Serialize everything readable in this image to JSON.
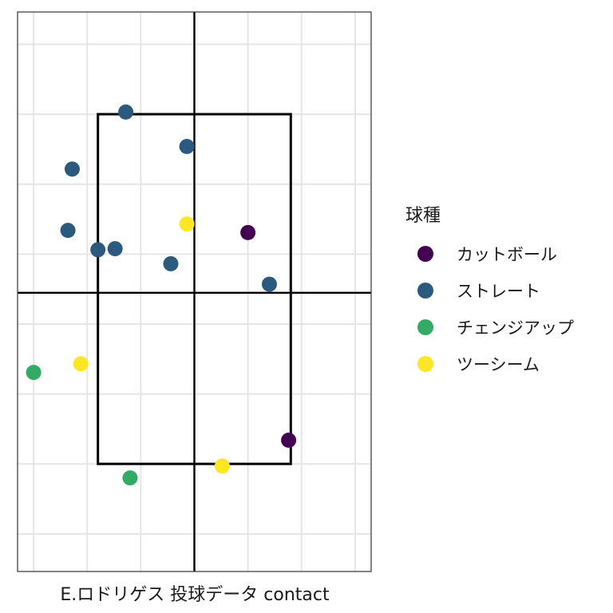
{
  "chart_data": {
    "type": "scatter",
    "title": "",
    "xlabel": "E.ロドリゲス 投球データ contact",
    "ylabel": "",
    "xlim": [
      -1.65,
      1.65
    ],
    "ylim": [
      0.0,
      5.2
    ],
    "x_gridlines": [
      -1.5,
      -1.0,
      -0.5,
      0.0,
      0.5,
      1.0,
      1.5
    ],
    "y_gridlines": [
      0.35,
      1.0,
      1.65,
      2.3,
      2.95,
      3.6,
      4.25,
      4.9
    ],
    "grid": true,
    "reference_lines": {
      "x": 0.0,
      "y": 2.59
    },
    "strike_zone": {
      "x": [
        -0.9,
        0.9
      ],
      "y": [
        1.0,
        4.25
      ]
    },
    "legend": {
      "title": "球種",
      "position": "right",
      "entries": [
        {
          "name": "カットボール",
          "color": "#440154"
        },
        {
          "name": "ストレート",
          "color": "#2c5a7f"
        },
        {
          "name": "チェンジアップ",
          "color": "#33aa66"
        },
        {
          "name": "ツーシーム",
          "color": "#fde725"
        }
      ]
    },
    "series": [
      {
        "name": "カットボール",
        "color": "#440154",
        "points": [
          {
            "x": 0.5,
            "y": 3.15
          },
          {
            "x": 0.88,
            "y": 1.22
          }
        ]
      },
      {
        "name": "ストレート",
        "color": "#2c5a7f",
        "points": [
          {
            "x": -0.64,
            "y": 4.27
          },
          {
            "x": -0.07,
            "y": 3.95
          },
          {
            "x": -1.14,
            "y": 3.74
          },
          {
            "x": -1.18,
            "y": 3.17
          },
          {
            "x": -0.9,
            "y": 2.99
          },
          {
            "x": -0.74,
            "y": 3.0
          },
          {
            "x": -0.22,
            "y": 2.86
          },
          {
            "x": 0.7,
            "y": 2.67
          }
        ]
      },
      {
        "name": "チェンジアップ",
        "color": "#33aa66",
        "points": [
          {
            "x": -1.5,
            "y": 1.85
          },
          {
            "x": -0.6,
            "y": 0.87
          }
        ]
      },
      {
        "name": "ツーシーム",
        "color": "#fde725",
        "points": [
          {
            "x": -1.06,
            "y": 1.93
          },
          {
            "x": -0.07,
            "y": 3.23
          },
          {
            "x": 0.26,
            "y": 0.98
          }
        ]
      }
    ]
  }
}
